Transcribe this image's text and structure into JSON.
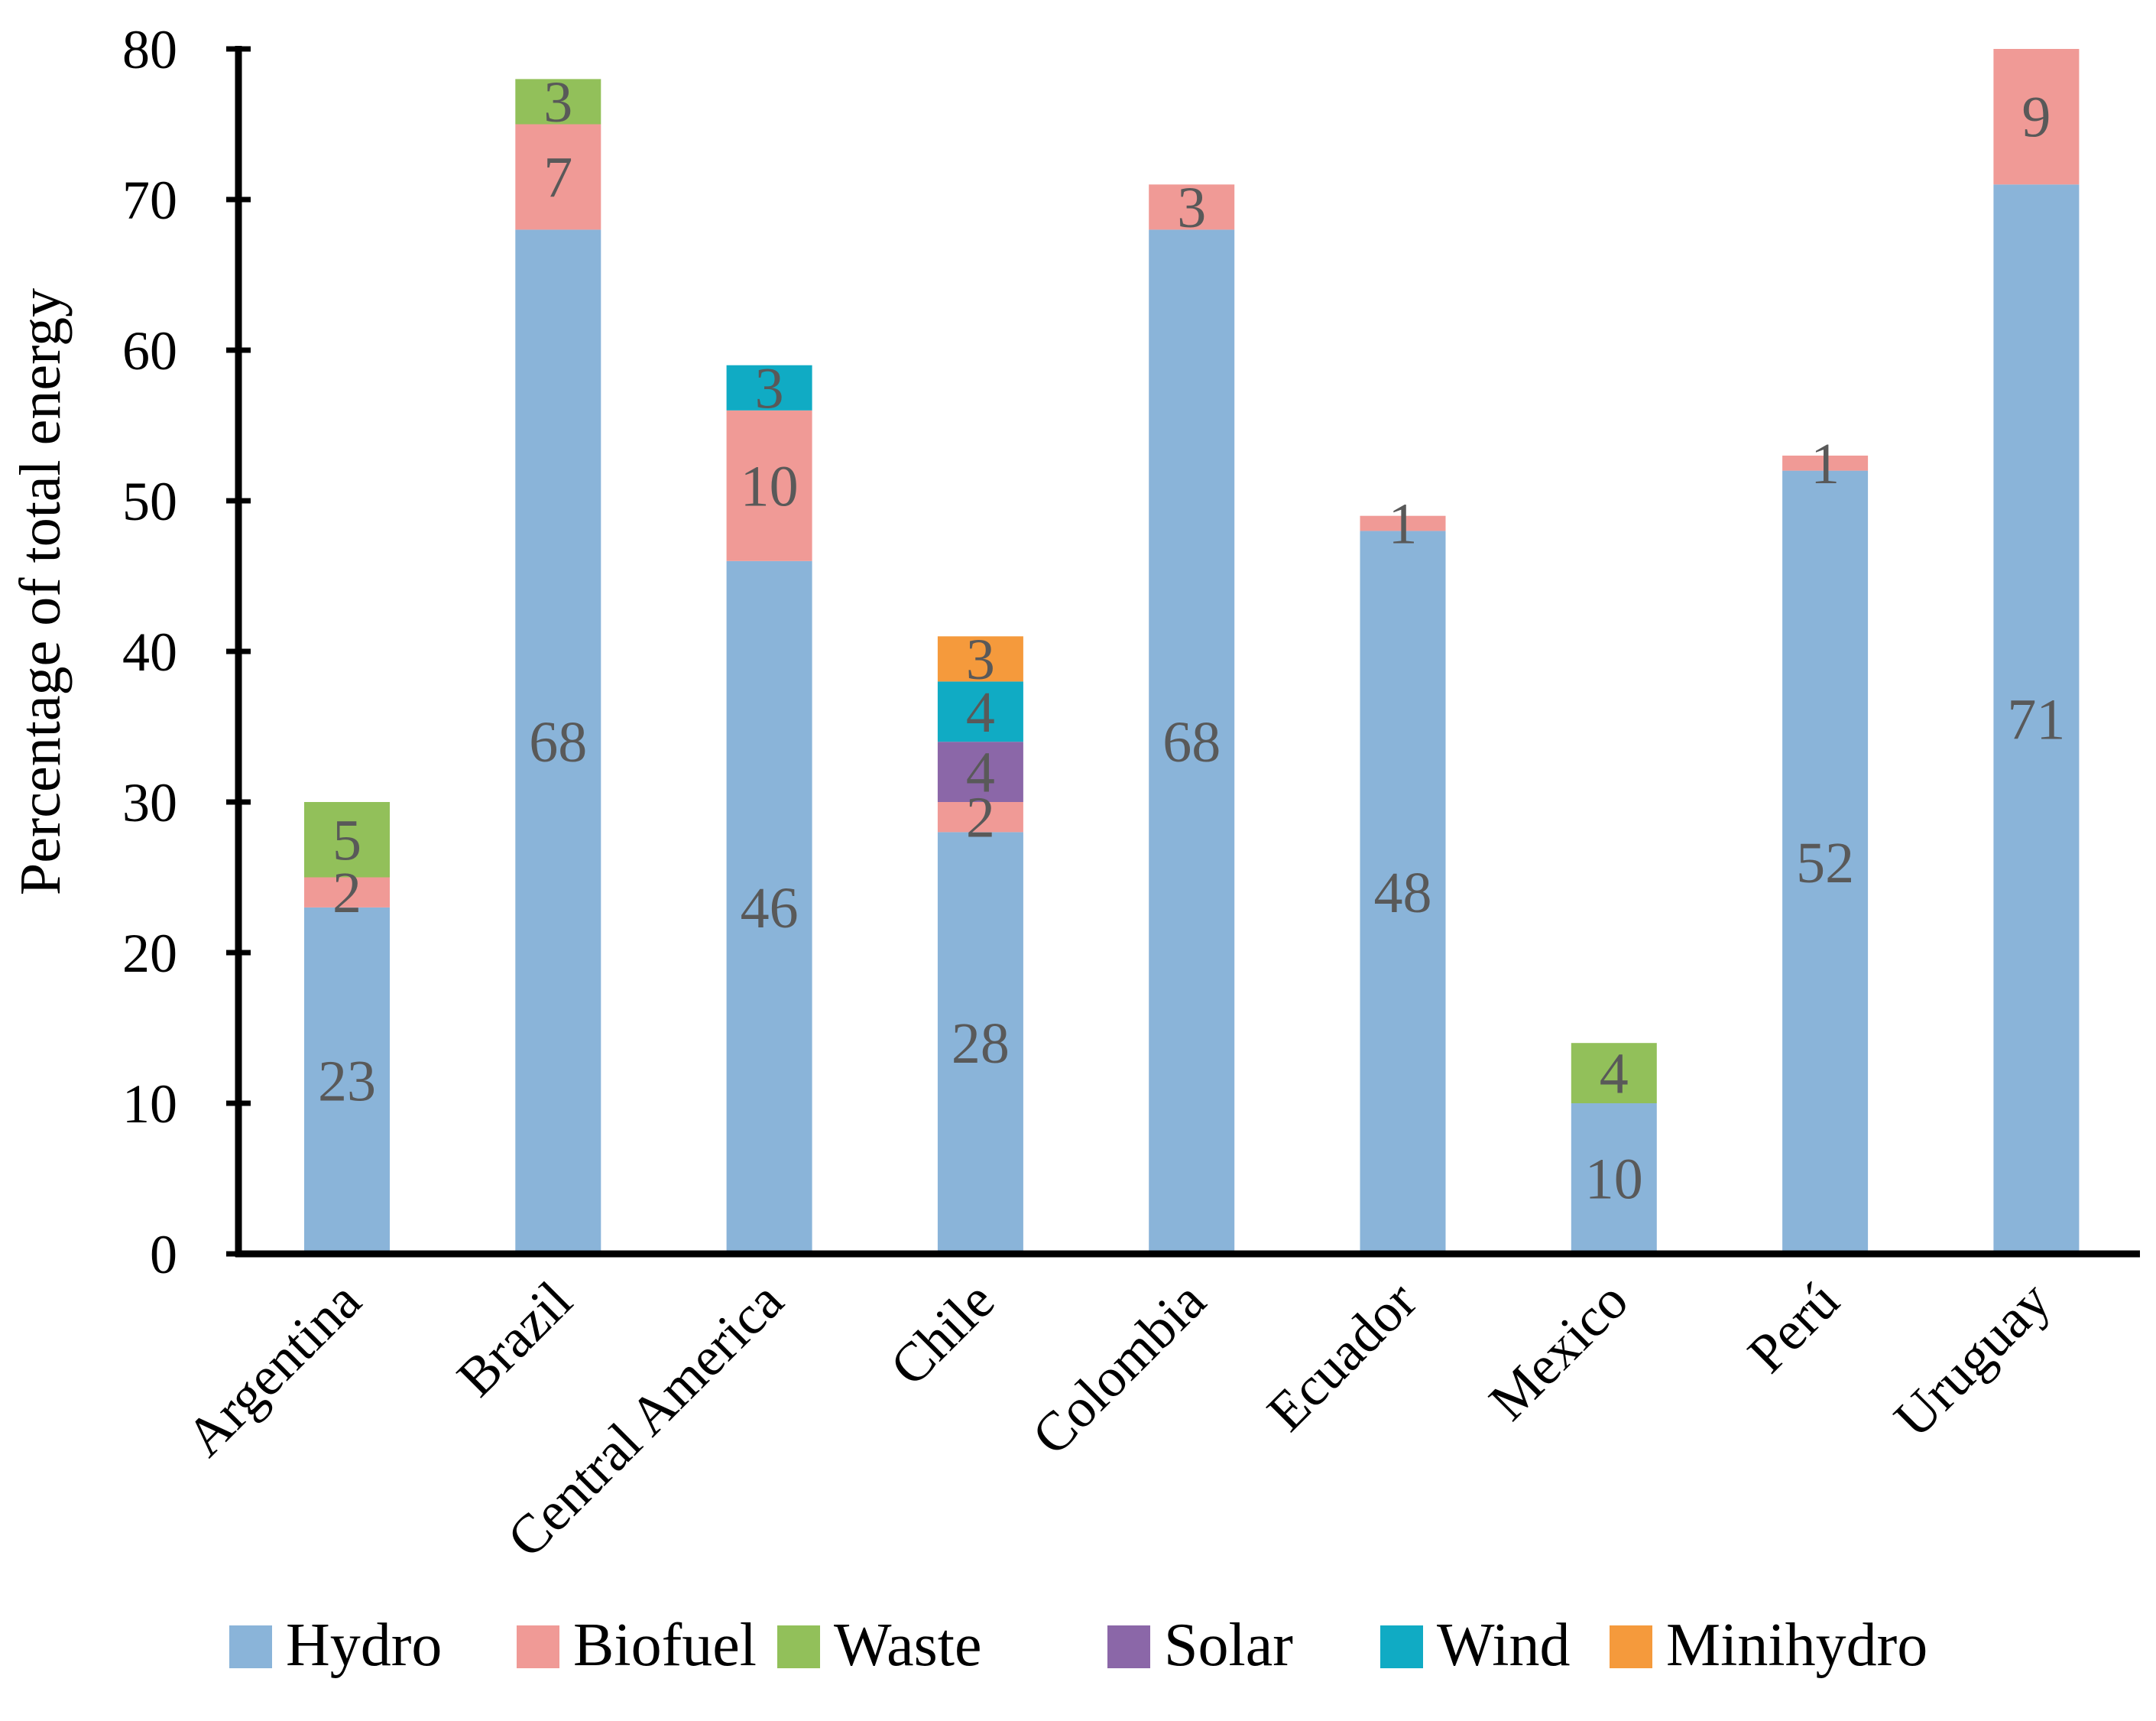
{
  "chart_data": {
    "type": "bar",
    "stacked": true,
    "title": "",
    "xlabel": "",
    "ylabel": "Percentage of total energy",
    "ylim": [
      0,
      80
    ],
    "yticks": [
      0,
      10,
      20,
      30,
      40,
      50,
      60,
      70,
      80
    ],
    "grid": false,
    "legend_position": "bottom",
    "categories": [
      "Argentina",
      "Brazil",
      "Central America",
      "Chile",
      "Colombia",
      "Ecuador",
      "Mexico",
      "Perú",
      "Uruguay"
    ],
    "series": [
      {
        "name": "Hydro",
        "color": "#8AB4D9",
        "values": [
          23,
          68,
          46,
          28,
          68,
          48,
          10,
          52,
          71
        ]
      },
      {
        "name": "Biofuel",
        "color": "#F09A96",
        "values": [
          2,
          7,
          10,
          2,
          3,
          1,
          0,
          1,
          9
        ]
      },
      {
        "name": "Waste",
        "color": "#92C05A",
        "values": [
          5,
          3,
          0,
          0,
          0,
          0,
          4,
          0,
          0
        ]
      },
      {
        "name": "Solar",
        "color": "#8B67A8",
        "values": [
          0,
          0,
          0,
          4,
          0,
          0,
          0,
          0,
          0
        ]
      },
      {
        "name": "Wind",
        "color": "#10ABC4",
        "values": [
          0,
          0,
          3,
          4,
          0,
          0,
          0,
          0,
          0
        ]
      },
      {
        "name": "Minihydro",
        "color": "#F59A3C",
        "values": [
          0,
          0,
          0,
          3,
          0,
          0,
          0,
          0,
          0
        ]
      }
    ]
  }
}
